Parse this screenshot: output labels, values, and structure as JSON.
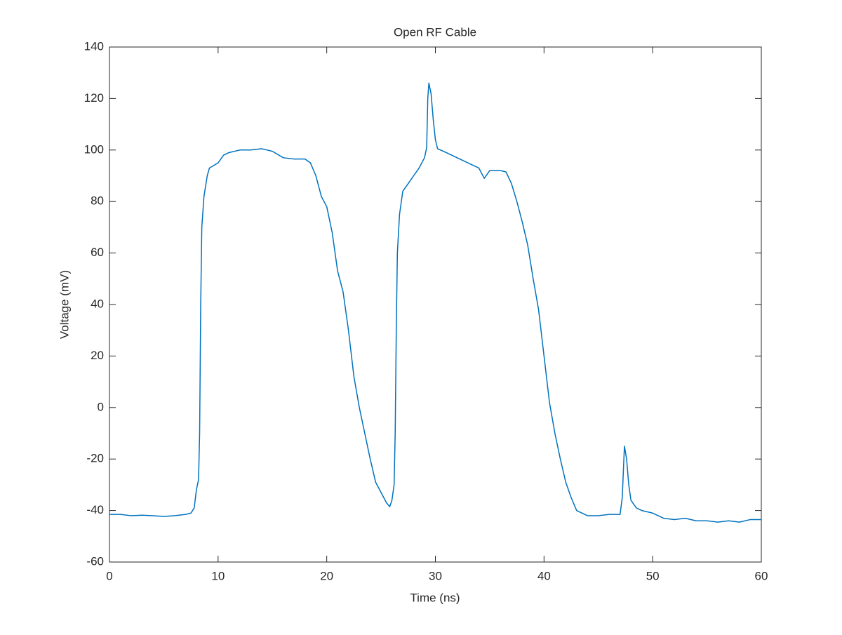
{
  "chart_data": {
    "type": "line",
    "title": "Open RF Cable",
    "x_label": "Time (ns)",
    "y_label": "Voltage (mV)",
    "x": [
      0,
      1,
      2,
      3,
      4,
      5,
      6,
      7,
      7.5,
      7.8,
      8.0,
      8.2,
      8.3,
      8.4,
      8.5,
      8.7,
      9.0,
      9.2,
      10,
      10.5,
      11,
      12,
      13,
      14,
      15,
      16,
      17,
      18,
      18.5,
      19,
      19.5,
      20,
      20.5,
      21,
      21.5,
      22,
      22.5,
      23,
      23.5,
      24,
      24.5,
      25,
      25.5,
      25.8,
      26.0,
      26.2,
      26.3,
      26.4,
      26.5,
      26.7,
      27,
      27.5,
      28,
      28.5,
      29,
      29.2,
      29.3,
      29.4,
      29.6,
      29.8,
      30,
      30.2,
      31,
      32,
      33,
      34,
      34.5,
      35,
      36,
      36.5,
      37,
      37.5,
      38,
      38.5,
      39,
      39.5,
      40,
      40.5,
      41,
      41.5,
      42,
      42.5,
      43,
      43.5,
      44,
      45,
      46,
      47,
      47.2,
      47.4,
      47.6,
      47.8,
      48,
      48.5,
      49,
      50,
      51,
      52,
      53,
      54,
      55,
      56,
      57,
      58,
      59,
      60
    ],
    "series": [
      {
        "name": "Voltage",
        "color": "#0072bd",
        "values": [
          -41.5,
          -41.5,
          -42,
          -41.8,
          -42,
          -42.3,
          -42,
          -41.5,
          -41,
          -39,
          -32,
          -28,
          -10,
          40,
          70,
          82,
          90,
          93,
          95,
          98,
          99,
          100,
          100,
          100.5,
          99.5,
          97,
          96.5,
          96.5,
          95,
          90,
          82,
          78,
          68,
          53,
          45,
          30,
          12,
          0,
          -10,
          -20,
          -29,
          -33,
          -37,
          -38.5,
          -36,
          -30,
          -10,
          30,
          60,
          75,
          84,
          87,
          90,
          93,
          97,
          101,
          120,
          126,
          122,
          112,
          104,
          100.5,
          99,
          97,
          95,
          93,
          89,
          92,
          92,
          91.5,
          87,
          80,
          72,
          63,
          50,
          38,
          20,
          2,
          -10,
          -20,
          -29,
          -35,
          -40,
          -41,
          -42,
          -42,
          -41.5,
          -41.5,
          -35,
          -15,
          -20,
          -30,
          -36,
          -39,
          -40,
          -41,
          -43,
          -43.5,
          -43,
          -44,
          -44,
          -44.5,
          -44,
          -44.5,
          -43.5,
          -43.5
        ]
      }
    ],
    "xlim": [
      0,
      60
    ],
    "xticks": [
      0,
      10,
      20,
      30,
      40,
      50,
      60
    ],
    "ylim": [
      -60,
      140
    ],
    "yticks": [
      -60,
      -40,
      -20,
      0,
      20,
      40,
      60,
      80,
      100,
      120,
      140
    ],
    "grid": false
  }
}
